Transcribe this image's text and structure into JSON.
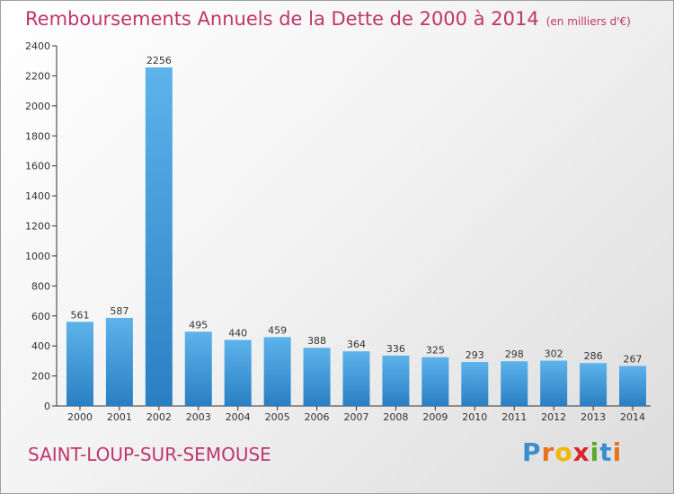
{
  "header": {
    "title": "Remboursements Annuels de la Dette de 2000 à 2014",
    "unit": "(en milliers d'€)"
  },
  "footer": {
    "town": "SAINT-LOUP-SUR-SEMOUSE",
    "logo": {
      "letters": [
        "P",
        "r",
        "o",
        "x",
        "i",
        "t",
        "i"
      ],
      "colors": [
        "#3a8fd0",
        "#e8731d",
        "#f2b705",
        "#d9262b",
        "#5aa82f",
        "#3a8fd0",
        "#e8731d"
      ]
    }
  },
  "chart_data": {
    "type": "bar",
    "title": "Remboursements Annuels de la Dette de 2000 à 2014",
    "subtitle": "(en milliers d'€)",
    "xlabel": "",
    "ylabel": "",
    "categories": [
      "2000",
      "2001",
      "2002",
      "2003",
      "2004",
      "2005",
      "2006",
      "2007",
      "2008",
      "2009",
      "2010",
      "2011",
      "2012",
      "2013",
      "2014"
    ],
    "values": [
      561,
      587,
      2256,
      495,
      440,
      459,
      388,
      364,
      336,
      325,
      293,
      298,
      302,
      286,
      267
    ],
    "ylim": [
      0,
      2400
    ],
    "yticks": [
      0,
      200,
      400,
      600,
      800,
      1000,
      1200,
      1400,
      1600,
      1800,
      2000,
      2200,
      2400
    ],
    "grid": false,
    "bar_color_light": "#5db3ea",
    "bar_color_dark": "#2a7fc4",
    "axis_color": "#333333"
  }
}
